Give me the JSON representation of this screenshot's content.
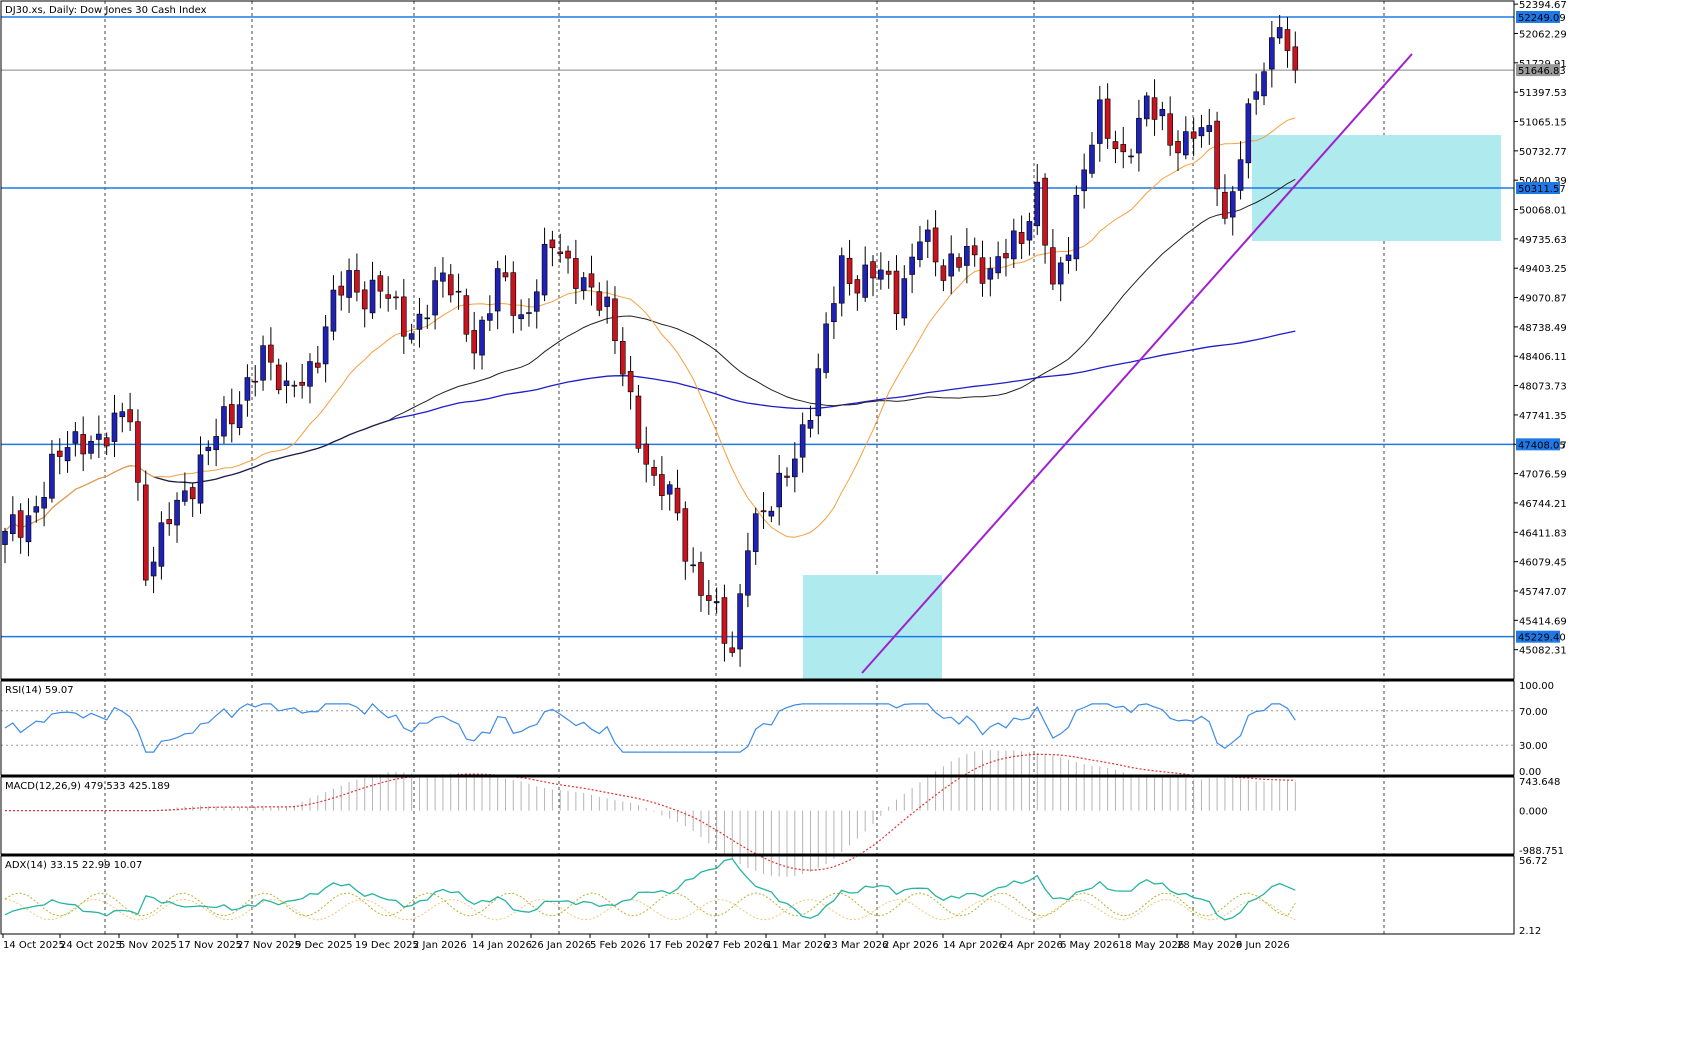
{
  "header": {
    "main_title": "DJ30.xs, Daily:  Dow Jones 30 Cash Index",
    "rsi_title": "RSI(14) 59.07",
    "macd_title": "MACD(12,26,9) 479.533 425.189",
    "adx_title": "ADX(14) 33.15 22.99 10.07"
  },
  "colors": {
    "bull_candle": "#1f22b4",
    "bear_candle": "#c8141e",
    "hline": "#1e78e6",
    "ma_fast": "#f5a040",
    "ma_mid": "#222222",
    "ma_slow": "#1e1ec8",
    "trendline": "#a020d0",
    "zone": "#aeeaee",
    "rsi": "#3c8ce6",
    "macd_signal": "#e63232",
    "macd_hist": "#b4b4b4",
    "adx_main": "#28b4a0",
    "adx_plus": "#b4b432",
    "adx_minus": "#f0c878"
  },
  "chart_data": [
    {
      "type": "candlestick",
      "title": "DJ30.xs, Daily:  Dow Jones 30 Cash Index",
      "x_labels": [
        "14 Oct 2025",
        "24 Oct 2025",
        "5 Nov 2025",
        "17 Nov 2025",
        "27 Nov 2025",
        "9 Dec 2025",
        "19 Dec 2025",
        "2 Jan 2026",
        "14 Jan 2026",
        "26 Jan 2026",
        "5 Feb 2026",
        "17 Feb 2026",
        "27 Feb 2026",
        "11 Mar 2026",
        "23 Mar 2026",
        "2 Apr 2026",
        "14 Apr 2026",
        "24 Apr 2026",
        "6 May 2026",
        "18 May 2026",
        "28 May 2026",
        "9 Jun 2026"
      ],
      "y_ticks": [
        "52394.67",
        "52062.29",
        "51729.91",
        "51397.53",
        "51065.15",
        "50732.77",
        "50400.39",
        "50068.01",
        "49735.63",
        "49403.25",
        "49070.87",
        "48738.49",
        "48406.11",
        "48073.73",
        "47741.35",
        "47408.97",
        "47076.59",
        "46744.21",
        "46411.83",
        "46079.45",
        "45747.07",
        "45414.69",
        "45082.31"
      ],
      "ylim": [
        44750,
        52430
      ],
      "price_levels": [
        "52249.09",
        "51646.83",
        "50311.57",
        "47408.05",
        "45229.40"
      ],
      "overlays": [
        "MA fast",
        "MA medium",
        "MA slow",
        "uptrend line",
        "demand zone",
        "resistance zone"
      ],
      "anchors": [
        [
          0,
          46260
        ],
        [
          4,
          46780
        ],
        [
          8,
          47400
        ],
        [
          12,
          47500
        ],
        [
          16,
          47700
        ],
        [
          18,
          46100
        ],
        [
          22,
          46600
        ],
        [
          25,
          47300
        ],
        [
          29,
          47700
        ],
        [
          33,
          48500
        ],
        [
          36,
          47900
        ],
        [
          40,
          48500
        ],
        [
          44,
          49300
        ],
        [
          48,
          49100
        ],
        [
          52,
          48700
        ],
        [
          56,
          49300
        ],
        [
          60,
          48600
        ],
        [
          63,
          49200
        ],
        [
          66,
          48900
        ],
        [
          70,
          49600
        ],
        [
          73,
          49400
        ],
        [
          77,
          48900
        ],
        [
          80,
          47900
        ],
        [
          83,
          46950
        ],
        [
          86,
          46600
        ],
        [
          89,
          45800
        ],
        [
          91,
          45350
        ],
        [
          93,
          45100
        ],
        [
          95,
          46400
        ],
        [
          98,
          46700
        ],
        [
          101,
          47300
        ],
        [
          104,
          48200
        ],
        [
          107,
          49400
        ],
        [
          110,
          49350
        ],
        [
          114,
          49100
        ],
        [
          117,
          49800
        ],
        [
          120,
          49300
        ],
        [
          123,
          49700
        ],
        [
          126,
          49200
        ],
        [
          129,
          49800
        ],
        [
          132,
          50150
        ],
        [
          134,
          49100
        ],
        [
          137,
          50200
        ],
        [
          140,
          51100
        ],
        [
          143,
          50650
        ],
        [
          146,
          51300
        ],
        [
          149,
          50800
        ],
        [
          152,
          51050
        ],
        [
          154,
          50750
        ],
        [
          156,
          49950
        ],
        [
          158,
          50850
        ],
        [
          161,
          51600
        ],
        [
          163,
          52150
        ],
        [
          165,
          51640
        ]
      ]
    },
    {
      "type": "line",
      "title": "RSI(14) 59.07",
      "y_ticks": [
        "100.00",
        "70.00",
        "30.00",
        "0.00"
      ],
      "ylim": [
        0,
        100
      ],
      "last": 59.07
    },
    {
      "type": "bar",
      "title": "MACD(12,26,9) 479.533 425.189",
      "y_ticks": [
        "743.648",
        "0.000",
        "-988.751"
      ],
      "ylim": [
        -988.751,
        743.648
      ],
      "macd": 479.533,
      "signal": 425.189
    },
    {
      "type": "line",
      "title": "ADX(14) 33.15 22.99 10.07",
      "y_ticks": [
        "56.72",
        "2.12"
      ],
      "ylim": [
        2.12,
        56.72
      ],
      "adx": 33.15,
      "plus_di": 22.99,
      "minus_di": 10.07
    }
  ]
}
